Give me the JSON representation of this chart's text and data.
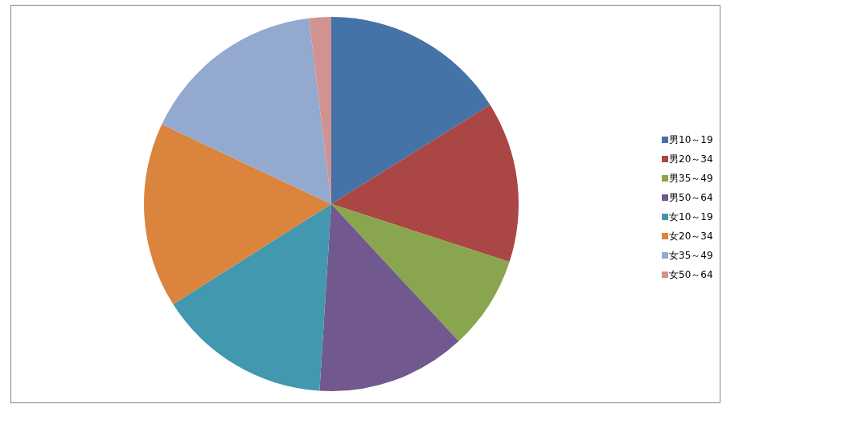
{
  "chart_data": {
    "type": "pie",
    "categories": [
      "男10～19",
      "男20～34",
      "男35～49",
      "男50～64",
      "女10～19",
      "女20～34",
      "女35～49",
      "女50～64"
    ],
    "values": [
      16.1,
      13.9,
      8.1,
      12.9,
      15.0,
      16.0,
      16.1,
      1.9
    ],
    "colors": [
      "#4572a7",
      "#aa4643",
      "#89a54e",
      "#71588f",
      "#4198af",
      "#db843d",
      "#93a9cf",
      "#d19392"
    ],
    "legend": "right"
  }
}
